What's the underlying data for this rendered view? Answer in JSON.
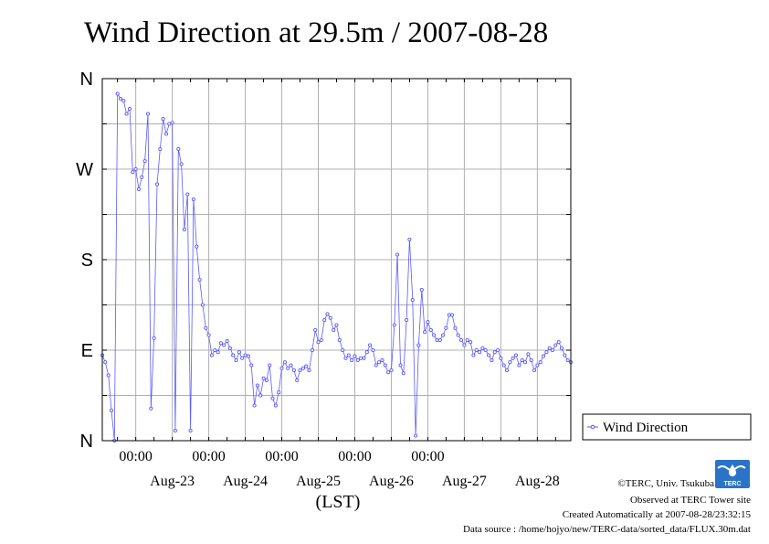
{
  "chart_data": {
    "type": "line",
    "title": "Wind Direction at 29.5m / 2007-08-28",
    "xlabel": "(LST)",
    "ylabel": "",
    "y_ticks": [
      {
        "value": 0,
        "label": "N"
      },
      {
        "value": 90,
        "label": "E"
      },
      {
        "value": 180,
        "label": "S"
      },
      {
        "value": 270,
        "label": "W"
      },
      {
        "value": 360,
        "label": "N"
      }
    ],
    "ylim": [
      0,
      360
    ],
    "xlim": [
      "2007-08-22 13:00",
      "2007-08-28 23:00"
    ],
    "x_time_ticks": [
      {
        "time": "2007-08-23 00:00",
        "label": "00:00"
      },
      {
        "time": "2007-08-24 00:00",
        "label": "00:00"
      },
      {
        "time": "2007-08-25 00:00",
        "label": "00:00"
      },
      {
        "time": "2007-08-26 00:00",
        "label": "00:00"
      },
      {
        "time": "2007-08-27 00:00",
        "label": "00:00"
      }
    ],
    "x_date_labels": [
      {
        "time": "2007-08-23 12:00",
        "label": "Aug-23"
      },
      {
        "time": "2007-08-24 12:00",
        "label": "Aug-24"
      },
      {
        "time": "2007-08-25 12:00",
        "label": "Aug-25"
      },
      {
        "time": "2007-08-26 12:00",
        "label": "Aug-26"
      },
      {
        "time": "2007-08-27 12:00",
        "label": "Aug-27"
      },
      {
        "time": "2007-08-28 12:00",
        "label": "Aug-28"
      }
    ],
    "grid": true,
    "legend": "right",
    "series": [
      {
        "name": "Wind Direction",
        "color": "#5a5aff",
        "points": [
          [
            "2007-08-22 13:00",
            85
          ],
          [
            "2007-08-22 14:00",
            78
          ],
          [
            "2007-08-22 15:00",
            65
          ],
          [
            "2007-08-22 16:00",
            30
          ],
          [
            "2007-08-22 17:00",
            0
          ],
          [
            "2007-08-22 18:00",
            345
          ],
          [
            "2007-08-22 19:00",
            340
          ],
          [
            "2007-08-22 20:00",
            338
          ],
          [
            "2007-08-22 21:00",
            325
          ],
          [
            "2007-08-22 22:00",
            330
          ],
          [
            "2007-08-22 23:00",
            267
          ],
          [
            "2007-08-23 00:00",
            270
          ],
          [
            "2007-08-23 01:00",
            250
          ],
          [
            "2007-08-23 02:00",
            262
          ],
          [
            "2007-08-23 03:00",
            278
          ],
          [
            "2007-08-23 04:00",
            325
          ],
          [
            "2007-08-23 05:00",
            32
          ],
          [
            "2007-08-23 06:00",
            102
          ],
          [
            "2007-08-23 07:00",
            255
          ],
          [
            "2007-08-23 08:00",
            290
          ],
          [
            "2007-08-23 09:00",
            320
          ],
          [
            "2007-08-23 10:00",
            305
          ],
          [
            "2007-08-23 11:00",
            315
          ],
          [
            "2007-08-23 12:00",
            316
          ],
          [
            "2007-08-23 13:00",
            10
          ],
          [
            "2007-08-23 14:00",
            290
          ],
          [
            "2007-08-23 15:00",
            275
          ],
          [
            "2007-08-23 16:00",
            210
          ],
          [
            "2007-08-23 17:00",
            245
          ],
          [
            "2007-08-23 18:00",
            10
          ],
          [
            "2007-08-23 19:00",
            240
          ],
          [
            "2007-08-23 20:00",
            193
          ],
          [
            "2007-08-23 21:00",
            160
          ],
          [
            "2007-08-23 22:00",
            135
          ],
          [
            "2007-08-23 23:00",
            112
          ],
          [
            "2007-08-24 00:00",
            105
          ],
          [
            "2007-08-24 01:00",
            85
          ],
          [
            "2007-08-24 02:00",
            90
          ],
          [
            "2007-08-24 03:00",
            88
          ],
          [
            "2007-08-24 04:00",
            97
          ],
          [
            "2007-08-24 05:00",
            95
          ],
          [
            "2007-08-24 06:00",
            99
          ],
          [
            "2007-08-24 07:00",
            92
          ],
          [
            "2007-08-24 08:00",
            85
          ],
          [
            "2007-08-24 09:00",
            80
          ],
          [
            "2007-08-24 10:00",
            88
          ],
          [
            "2007-08-24 11:00",
            82
          ],
          [
            "2007-08-24 12:00",
            85
          ],
          [
            "2007-08-24 13:00",
            84
          ],
          [
            "2007-08-24 14:00",
            75
          ],
          [
            "2007-08-24 15:00",
            35
          ],
          [
            "2007-08-24 16:00",
            55
          ],
          [
            "2007-08-24 17:00",
            45
          ],
          [
            "2007-08-24 18:00",
            62
          ],
          [
            "2007-08-24 19:00",
            60
          ],
          [
            "2007-08-24 20:00",
            75
          ],
          [
            "2007-08-24 21:00",
            42
          ],
          [
            "2007-08-24 22:00",
            35
          ],
          [
            "2007-08-24 23:00",
            48
          ],
          [
            "2007-08-25 00:00",
            72
          ],
          [
            "2007-08-25 01:00",
            78
          ],
          [
            "2007-08-25 02:00",
            72
          ],
          [
            "2007-08-25 03:00",
            75
          ],
          [
            "2007-08-25 04:00",
            70
          ],
          [
            "2007-08-25 05:00",
            60
          ],
          [
            "2007-08-25 06:00",
            70
          ],
          [
            "2007-08-25 07:00",
            72
          ],
          [
            "2007-08-25 08:00",
            74
          ],
          [
            "2007-08-25 09:00",
            70
          ],
          [
            "2007-08-25 10:00",
            90
          ],
          [
            "2007-08-25 11:00",
            110
          ],
          [
            "2007-08-25 12:00",
            98
          ],
          [
            "2007-08-25 13:00",
            100
          ],
          [
            "2007-08-25 14:00",
            120
          ],
          [
            "2007-08-25 15:00",
            126
          ],
          [
            "2007-08-25 16:00",
            122
          ],
          [
            "2007-08-25 17:00",
            110
          ],
          [
            "2007-08-25 18:00",
            115
          ],
          [
            "2007-08-25 19:00",
            100
          ],
          [
            "2007-08-25 20:00",
            90
          ],
          [
            "2007-08-25 21:00",
            82
          ],
          [
            "2007-08-25 22:00",
            85
          ],
          [
            "2007-08-25 23:00",
            80
          ],
          [
            "2007-08-26 00:00",
            84
          ],
          [
            "2007-08-26 01:00",
            80
          ],
          [
            "2007-08-26 02:00",
            82
          ],
          [
            "2007-08-26 03:00",
            82
          ],
          [
            "2007-08-26 04:00",
            88
          ],
          [
            "2007-08-26 05:00",
            95
          ],
          [
            "2007-08-26 06:00",
            90
          ],
          [
            "2007-08-26 07:00",
            75
          ],
          [
            "2007-08-26 08:00",
            78
          ],
          [
            "2007-08-26 09:00",
            80
          ],
          [
            "2007-08-26 10:00",
            75
          ],
          [
            "2007-08-26 11:00",
            68
          ],
          [
            "2007-08-26 12:00",
            70
          ],
          [
            "2007-08-26 13:00",
            115
          ],
          [
            "2007-08-26 14:00",
            185
          ],
          [
            "2007-08-26 15:00",
            75
          ],
          [
            "2007-08-26 16:00",
            67
          ],
          [
            "2007-08-26 17:00",
            120
          ],
          [
            "2007-08-26 18:00",
            200
          ],
          [
            "2007-08-26 19:00",
            140
          ],
          [
            "2007-08-26 20:00",
            5
          ],
          [
            "2007-08-26 21:00",
            95
          ],
          [
            "2007-08-26 22:00",
            150
          ],
          [
            "2007-08-26 23:00",
            108
          ],
          [
            "2007-08-27 00:00",
            118
          ],
          [
            "2007-08-27 01:00",
            110
          ],
          [
            "2007-08-27 02:00",
            105
          ],
          [
            "2007-08-27 03:00",
            100
          ],
          [
            "2007-08-27 04:00",
            100
          ],
          [
            "2007-08-27 05:00",
            105
          ],
          [
            "2007-08-27 06:00",
            112
          ],
          [
            "2007-08-27 07:00",
            125
          ],
          [
            "2007-08-27 08:00",
            125
          ],
          [
            "2007-08-27 09:00",
            112
          ],
          [
            "2007-08-27 10:00",
            105
          ],
          [
            "2007-08-27 11:00",
            100
          ],
          [
            "2007-08-27 12:00",
            95
          ],
          [
            "2007-08-27 13:00",
            100
          ],
          [
            "2007-08-27 14:00",
            98
          ],
          [
            "2007-08-27 15:00",
            85
          ],
          [
            "2007-08-27 16:00",
            90
          ],
          [
            "2007-08-27 17:00",
            88
          ],
          [
            "2007-08-27 18:00",
            92
          ],
          [
            "2007-08-27 19:00",
            90
          ],
          [
            "2007-08-27 20:00",
            85
          ],
          [
            "2007-08-27 21:00",
            80
          ],
          [
            "2007-08-27 22:00",
            88
          ],
          [
            "2007-08-27 23:00",
            90
          ],
          [
            "2007-08-28 00:00",
            82
          ],
          [
            "2007-08-28 01:00",
            75
          ],
          [
            "2007-08-28 02:00",
            70
          ],
          [
            "2007-08-28 03:00",
            78
          ],
          [
            "2007-08-28 04:00",
            82
          ],
          [
            "2007-08-28 05:00",
            85
          ],
          [
            "2007-08-28 06:00",
            75
          ],
          [
            "2007-08-28 07:00",
            80
          ],
          [
            "2007-08-28 08:00",
            78
          ],
          [
            "2007-08-28 09:00",
            86
          ],
          [
            "2007-08-28 10:00",
            80
          ],
          [
            "2007-08-28 11:00",
            70
          ],
          [
            "2007-08-28 12:00",
            75
          ],
          [
            "2007-08-28 13:00",
            78
          ],
          [
            "2007-08-28 14:00",
            84
          ],
          [
            "2007-08-28 15:00",
            88
          ],
          [
            "2007-08-28 16:00",
            92
          ],
          [
            "2007-08-28 17:00",
            90
          ],
          [
            "2007-08-28 18:00",
            95
          ],
          [
            "2007-08-28 19:00",
            98
          ],
          [
            "2007-08-28 20:00",
            92
          ],
          [
            "2007-08-28 21:00",
            85
          ],
          [
            "2007-08-28 22:00",
            80
          ],
          [
            "2007-08-28 23:00",
            78
          ]
        ]
      }
    ]
  },
  "footer": {
    "copyright": "©TERC, Univ. Tsukuba",
    "observed": "Observed at TERC Tower site",
    "created": "Created Automatically at 2007-08-28/23:32:15",
    "source": "Data source : /home/hojyo/new/TERC-data/sorted_data/FLUX.30m.dat"
  },
  "logo": {
    "text": "TERC",
    "color": "#2a73c9"
  }
}
